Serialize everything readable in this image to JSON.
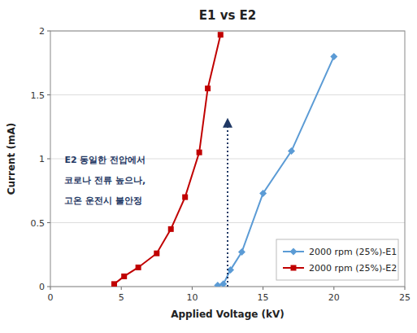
{
  "chart_data": {
    "type": "line",
    "title": "E1 vs E2",
    "x_label": "Applied Voltage (kV)",
    "y_label": "Current (mA)",
    "series": [
      {
        "name": "2000 rpm (25%)-E1",
        "color": "#5B9BD5",
        "marker": "diamond",
        "x": [
          11.8,
          12.2,
          12.7,
          13.5,
          15.0,
          17.0,
          20.0
        ],
        "values": [
          0.01,
          0.02,
          0.13,
          0.27,
          0.73,
          1.06,
          1.8
        ]
      },
      {
        "name": "2000 rpm (25%)-E2",
        "color": "#C00000",
        "marker": "square",
        "x": [
          4.5,
          5.2,
          6.2,
          7.5,
          8.5,
          9.5,
          10.5,
          11.1,
          12.0
        ],
        "values": [
          0.02,
          0.08,
          0.15,
          0.26,
          0.45,
          0.7,
          1.05,
          1.55,
          1.97
        ]
      }
    ],
    "annotations": [
      {
        "text": "E2 동일한 전압에서",
        "color": "#1F3864"
      },
      {
        "text": "코로나 전류 높으나,",
        "color": "#1F3864"
      },
      {
        "text": "고온 운전시 불안정",
        "color": "#1F3864"
      }
    ],
    "arrow": {
      "x": 12.5,
      "y": [
        0.0,
        1.32
      ],
      "color": "#1F3864"
    },
    "xlim": [
      0,
      25
    ],
    "ylim": [
      0,
      2
    ],
    "xticks": [
      0,
      5,
      10,
      15,
      20,
      25
    ],
    "yticks": [
      0,
      0.5,
      1,
      1.5,
      2
    ],
    "grid": true,
    "legend": "lower right"
  }
}
